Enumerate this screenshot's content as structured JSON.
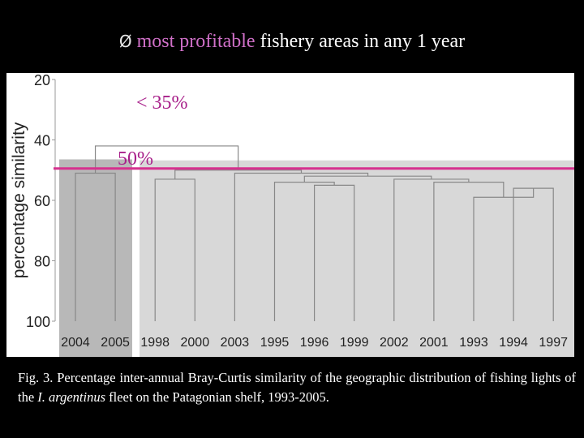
{
  "slide": {
    "bullet_glyph": "Ø",
    "title_highlight": "most profitable",
    "title_rest": " fishery areas in any 1 year",
    "highlight_color": "#d070c8",
    "caption_prefix": "Fig. 3.  Percentage inter-annual Bray-Curtis similarity of the geographic distribution of fishing lights of the ",
    "caption_species": "I. argentinus",
    "caption_suffix": " fleet on the Patagonian shelf, 1993-2005."
  },
  "chart_data": {
    "type": "dendrogram",
    "ylabel": "percentage similarity",
    "y_axis_inverted": true,
    "ylim": [
      20,
      100
    ],
    "yticks": [
      20,
      40,
      60,
      80,
      100
    ],
    "leaves": [
      "2004",
      "2005",
      "1998",
      "2000",
      "2003",
      "1995",
      "1996",
      "1999",
      "2002",
      "2001",
      "1993",
      "1994",
      "1997"
    ],
    "merges": [
      {
        "left": "2004",
        "right": "2005",
        "similarity": 51
      },
      {
        "left": "1998",
        "right": "2000",
        "similarity": 53
      },
      {
        "left": "1996",
        "right": "1999",
        "similarity": 55
      },
      {
        "left": "1995",
        "right": "{1996,1999}",
        "similarity": 54
      },
      {
        "left": "1994",
        "right": "1997",
        "similarity": 56
      },
      {
        "left": "1993",
        "right": "{1994,1997}",
        "similarity": 59
      },
      {
        "left": "2001",
        "right": "{1993,1994,1997}",
        "similarity": 54
      },
      {
        "left": "2002",
        "right": "{2001,1993,1994,1997}",
        "similarity": 53
      },
      {
        "left": "{1995,1996,1999}",
        "right": "{2002,2001,1993,1994,1997}",
        "similarity": 52
      },
      {
        "left": "2003",
        "right": "{1995..1997}",
        "similarity": 51
      },
      {
        "left": "{1998,2000}",
        "right": "{2003..1997}",
        "similarity": 50
      },
      {
        "left": "{2004,2005}",
        "right": "{1998..1997}",
        "similarity": 42
      }
    ],
    "groups": [
      {
        "members": [
          "2004",
          "2005"
        ],
        "shade": "#b8b8b8"
      },
      {
        "members": [
          "1998",
          "2000",
          "2003",
          "1995",
          "1996",
          "1999",
          "2002",
          "2001",
          "1993",
          "1994",
          "1997"
        ],
        "shade": "#d8d8d8"
      }
    ],
    "annotations": [
      {
        "text": "< 35%",
        "color": "#a8208a"
      },
      {
        "text": "50%",
        "color": "#a8208a"
      }
    ],
    "threshold_line": {
      "similarity": 50,
      "color": "#d6308e"
    }
  }
}
